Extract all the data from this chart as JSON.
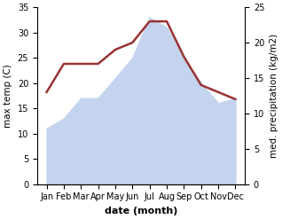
{
  "months": [
    "Jan",
    "Feb",
    "Mar",
    "Apr",
    "May",
    "Jun",
    "Jul",
    "Aug",
    "Sep",
    "Oct",
    "Nov",
    "Dec"
  ],
  "max_temp": [
    11,
    13,
    17,
    17,
    21,
    25,
    33,
    31,
    25,
    20,
    16,
    17
  ],
  "precipitation": [
    13,
    17,
    17,
    17,
    19,
    20,
    23,
    23,
    18,
    14,
    13,
    12
  ],
  "temp_color_fill": "#c5d4ee",
  "temp_fill_alpha": 1.0,
  "precip_color": "#993333",
  "precip_linewidth": 1.8,
  "ylabel_left": "max temp (C)",
  "ylabel_right": "med. precipitation (kg/m2)",
  "xlabel": "date (month)",
  "ylim_left": [
    0,
    35
  ],
  "ylim_right": [
    0,
    25
  ],
  "yticks_left": [
    0,
    5,
    10,
    15,
    20,
    25,
    30,
    35
  ],
  "yticks_right": [
    0,
    5,
    10,
    15,
    20,
    25
  ],
  "background_color": "#ffffff",
  "label_fontsize": 7.5,
  "tick_fontsize": 7,
  "xlabel_fontsize": 8,
  "xlabel_fontweight": "bold"
}
